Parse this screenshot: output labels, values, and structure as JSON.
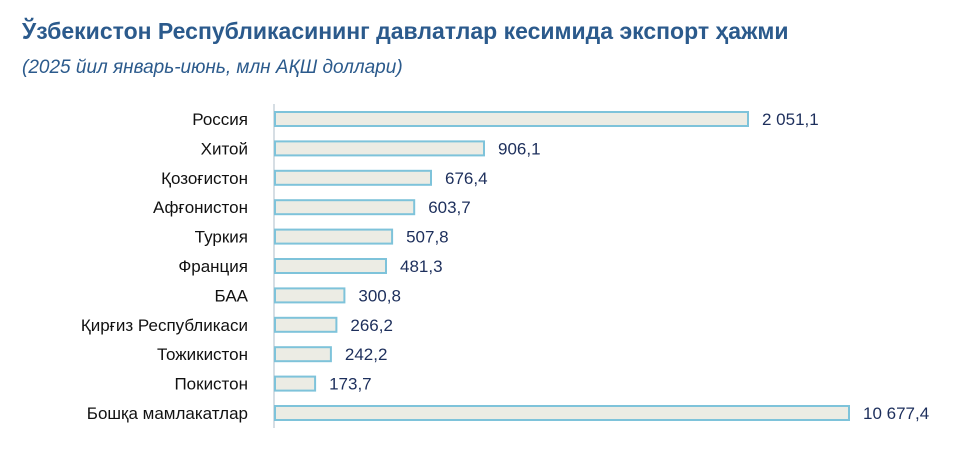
{
  "chart_data": {
    "type": "bar",
    "orientation": "horizontal",
    "title": "Ўзбекистон Республикасининг давлатлар кесимида экспорт ҳажми",
    "subtitle": "(2025 йил январь-июнь, млн АҚШ доллари)",
    "categories": [
      "Россия",
      "Хитой",
      "Қозоғистон",
      "Афғонистон",
      "Туркия",
      "Франция",
      "БАА",
      "Қирғиз Республикаси",
      "Тожикистон",
      "Покистон",
      "Бошқа мамлакатлар"
    ],
    "values": [
      2051.1,
      906.1,
      676.4,
      603.7,
      507.8,
      481.3,
      300.8,
      266.2,
      242.2,
      173.7,
      10677.4
    ],
    "value_labels": [
      "2 051,1",
      "906,1",
      "676,4",
      "603,7",
      "507,8",
      "481,3",
      "300,8",
      "266,2",
      "242,2",
      "173,7",
      "10 677,4"
    ],
    "bar_fill": "#ecece4",
    "bar_stroke": "#7ec3da",
    "title_color": "#2b5a8c",
    "value_label_color": "#1d2f5c",
    "axis": "broken",
    "grid": false,
    "legend": "none"
  }
}
